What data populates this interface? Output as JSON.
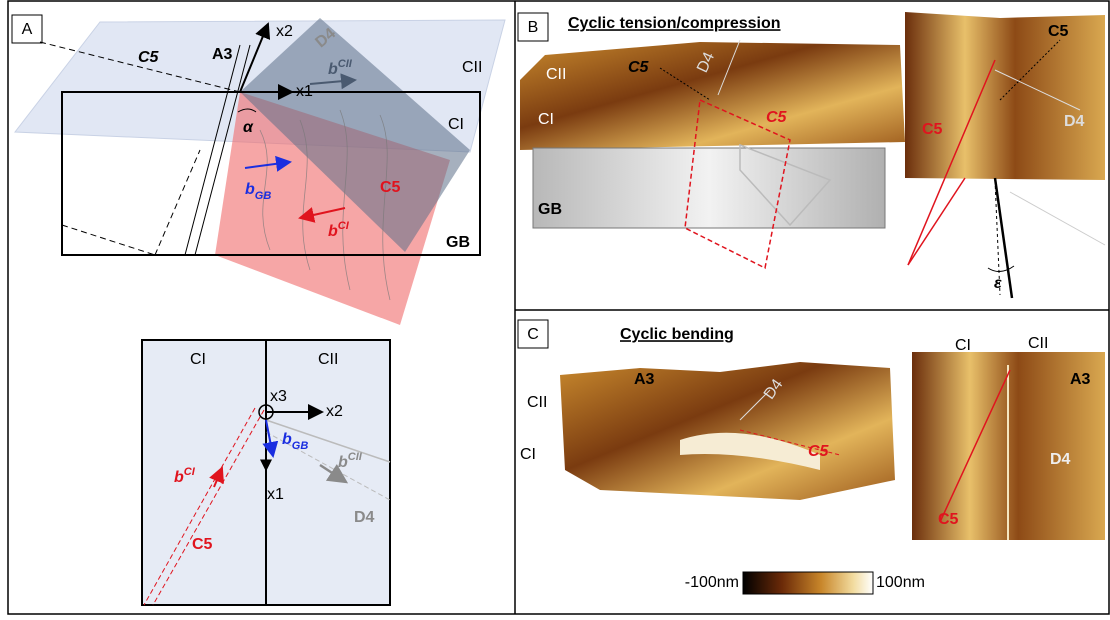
{
  "panel_a": {
    "label": "A",
    "schematic": {
      "c5_left": "C5",
      "a3": "A3",
      "x2": "x2",
      "d4": "D4",
      "b_cii": {
        "base": "b",
        "sup": "CII"
      },
      "cii": "CII",
      "x1": "x1",
      "alpha": "α",
      "ci": "CI",
      "b_gb": {
        "base": "b",
        "sub": "GB"
      },
      "c5_right": "C5",
      "b_ci": {
        "base": "b",
        "sup": "CI"
      },
      "gb": "GB"
    },
    "projection": {
      "ci": "CI",
      "cii": "CII",
      "x3": "x3",
      "x2": "x2",
      "b_gb": {
        "base": "b",
        "sub": "GB"
      },
      "b_cii": {
        "base": "b",
        "sup": "CII"
      },
      "b_ci": {
        "base": "b",
        "sup": "CI"
      },
      "x1": "x1",
      "d4": "D4",
      "c5": "C5"
    }
  },
  "panel_b": {
    "label": "B",
    "title": "Cyclic tension/compression",
    "left": {
      "cii": "CII",
      "c5_black": "C5",
      "d4": "D4",
      "c5_red": "C5",
      "ci": "CI",
      "gb": "GB"
    },
    "right": {
      "c5_black": "C5",
      "c5_red": "C5",
      "d4": "D4",
      "epsilon": "ε"
    }
  },
  "panel_c": {
    "label": "C",
    "title": "Cyclic bending",
    "left": {
      "a3": "A3",
      "d4": "D4",
      "cii": "CII",
      "ci": "CI",
      "c5": "C5"
    },
    "right": {
      "ci": "CI",
      "cii": "CII",
      "a3": "A3",
      "d4": "D4",
      "c5": "C5"
    }
  },
  "colorbar": {
    "min_label": "-100nm",
    "max_label": "100nm"
  }
}
